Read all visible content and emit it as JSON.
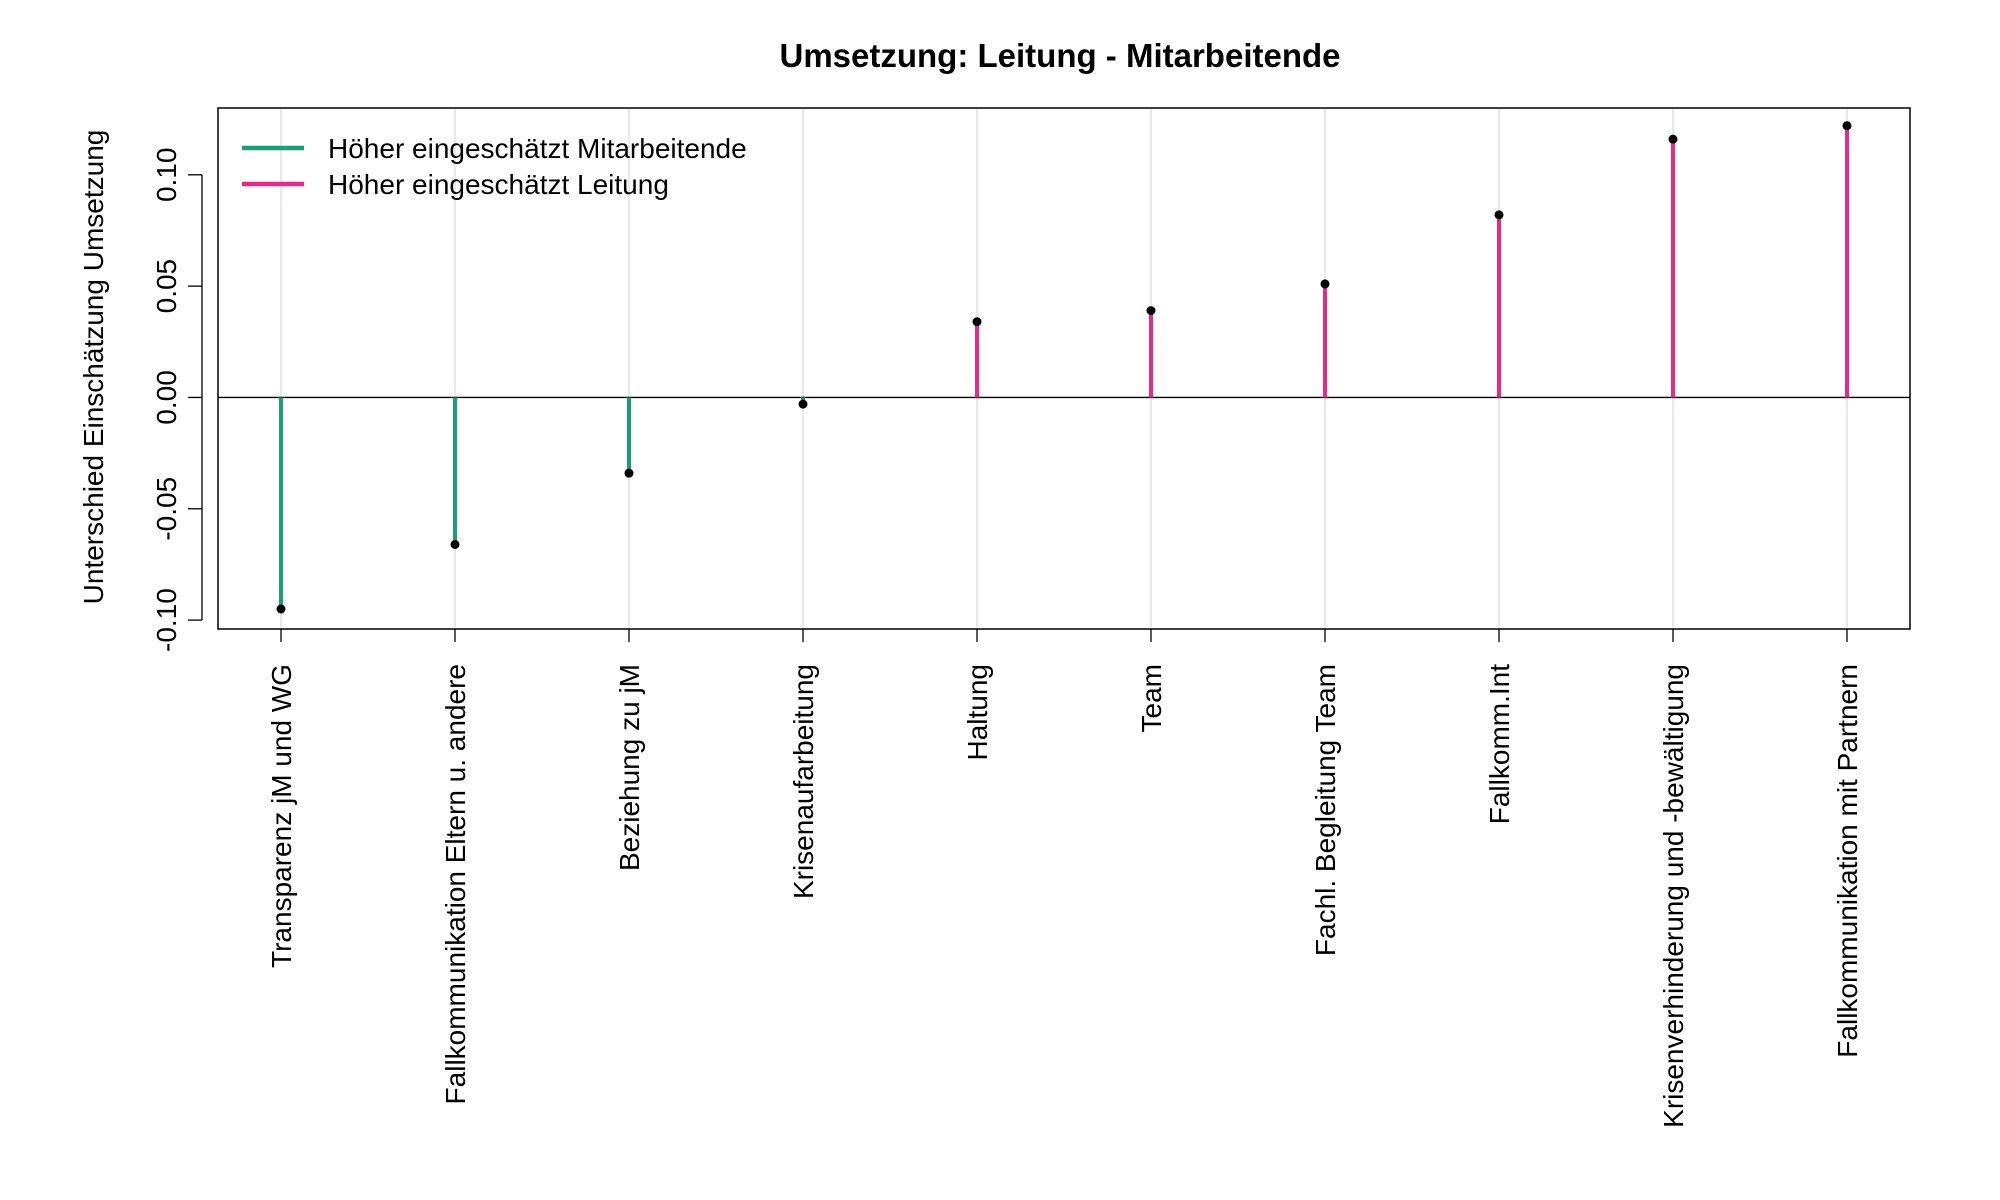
{
  "chart_data": {
    "type": "bar",
    "title": "Umsetzung: Leitung - Mitarbeitende",
    "xlabel": "",
    "ylabel": "Unterschied Einschätzung Umsetzung",
    "ylim": [
      -0.104,
      0.13
    ],
    "yticks": [
      -0.1,
      -0.05,
      0.0,
      0.05,
      0.1
    ],
    "ytick_labels": [
      "-0.10",
      "-0.05",
      "0.00",
      "0.05",
      "0.10"
    ],
    "categories": [
      "Transparenz jM und WG",
      "Fallkommunikation Eltern u. andere",
      "Beziehung zu jM",
      "Krisenaufarbeitung",
      "Haltung",
      "Team",
      "Fachl. Begleitung Team",
      "Fallkomm.Int",
      "Krisenverhinderung und -bewältigung",
      "Fallkommunikation mit Partnern"
    ],
    "values": [
      -0.095,
      -0.066,
      -0.034,
      -0.003,
      0.034,
      0.039,
      0.051,
      0.082,
      0.116,
      0.122
    ],
    "legend": {
      "position": "top-left",
      "entries": [
        {
          "label": "Höher eingeschätzt Mitarbeitende",
          "color": "#1b9e77"
        },
        {
          "label": "Höher eingeschätzt Leitung",
          "color": "#e7298a"
        }
      ]
    },
    "colors": {
      "negative": "#1b9e77",
      "positive": "#e7298a",
      "point": "#000000",
      "guide": "#d3d3d3"
    },
    "zero_line": true
  }
}
